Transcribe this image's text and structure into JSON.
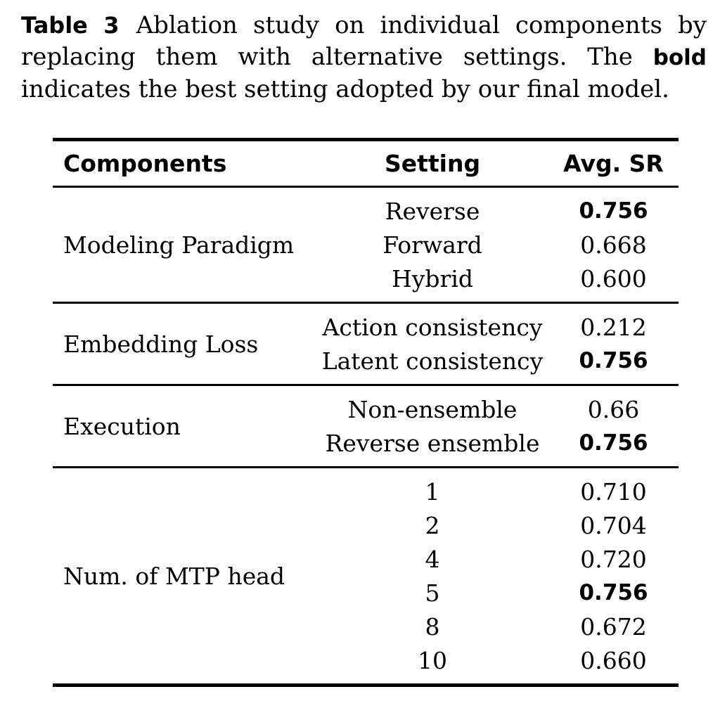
{
  "caption": {
    "label": "Table 3",
    "text_after_label": "Ablation study on individual components by replacing them with alternative settings. The ",
    "bold_word": "bold",
    "text_after_bold": " indicates the best setting adopted by our final model."
  },
  "table": {
    "headers": [
      "Components",
      "Setting",
      "Avg. SR"
    ],
    "sections": [
      {
        "component": "Modeling Paradigm",
        "rows": [
          {
            "setting": "Reverse",
            "value": "0.756",
            "bold": true
          },
          {
            "setting": "Forward",
            "value": "0.668",
            "bold": false
          },
          {
            "setting": "Hybrid",
            "value": "0.600",
            "bold": false
          }
        ]
      },
      {
        "component": "Embedding Loss",
        "rows": [
          {
            "setting": "Action consistency",
            "value": "0.212",
            "bold": false
          },
          {
            "setting": "Latent consistency",
            "value": "0.756",
            "bold": true
          }
        ]
      },
      {
        "component": "Execution",
        "rows": [
          {
            "setting": "Non-ensemble",
            "value": "0.66",
            "bold": false
          },
          {
            "setting": "Reverse ensemble",
            "value": "0.756",
            "bold": true
          }
        ]
      },
      {
        "component": "Num. of MTP head",
        "rows": [
          {
            "setting": "1",
            "value": "0.710",
            "bold": false
          },
          {
            "setting": "2",
            "value": "0.704",
            "bold": false
          },
          {
            "setting": "4",
            "value": "0.720",
            "bold": false
          },
          {
            "setting": "5",
            "value": "0.756",
            "bold": true
          },
          {
            "setting": "8",
            "value": "0.672",
            "bold": false
          },
          {
            "setting": "10",
            "value": "0.660",
            "bold": false
          }
        ]
      }
    ]
  }
}
